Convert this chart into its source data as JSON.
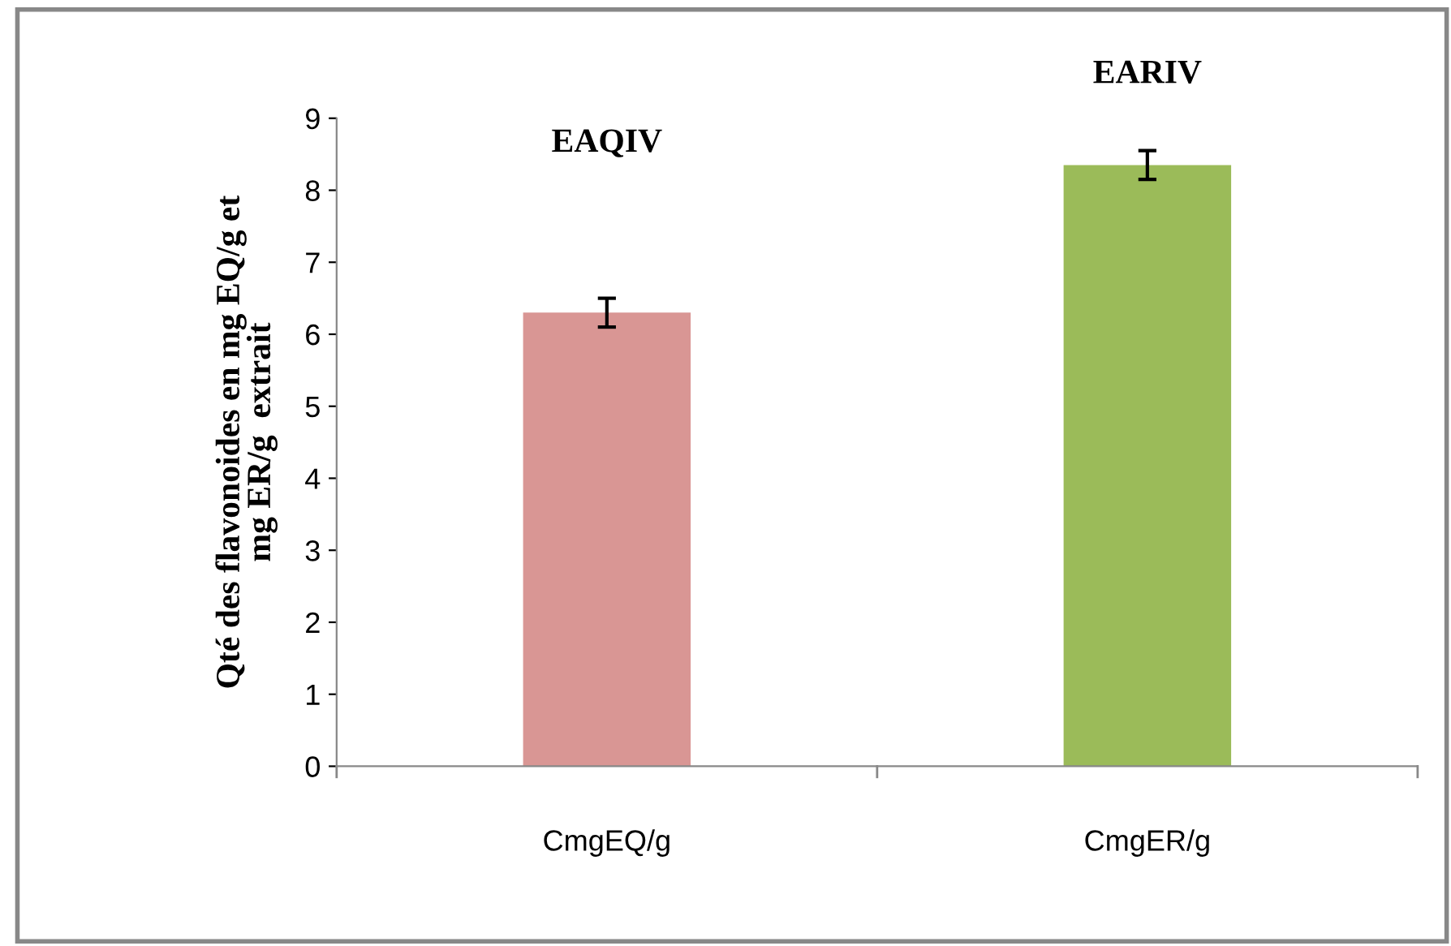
{
  "chart_data": {
    "type": "bar",
    "ylabel": "Qté des flavonoides en mg EQ/g et\nmg ER/g  extrait",
    "categories": [
      "CmgEQ/g",
      "CmgER/g"
    ],
    "values": [
      6.3,
      8.35
    ],
    "errors": [
      0.2,
      0.2
    ],
    "colors": [
      "#d99694",
      "#9bbb59"
    ],
    "ylim": [
      0,
      9
    ],
    "yticks": [
      0,
      1,
      2,
      3,
      4,
      5,
      6,
      7,
      8,
      9
    ],
    "grid": false,
    "annotations": [
      "EAQIV",
      "EARIV"
    ]
  }
}
